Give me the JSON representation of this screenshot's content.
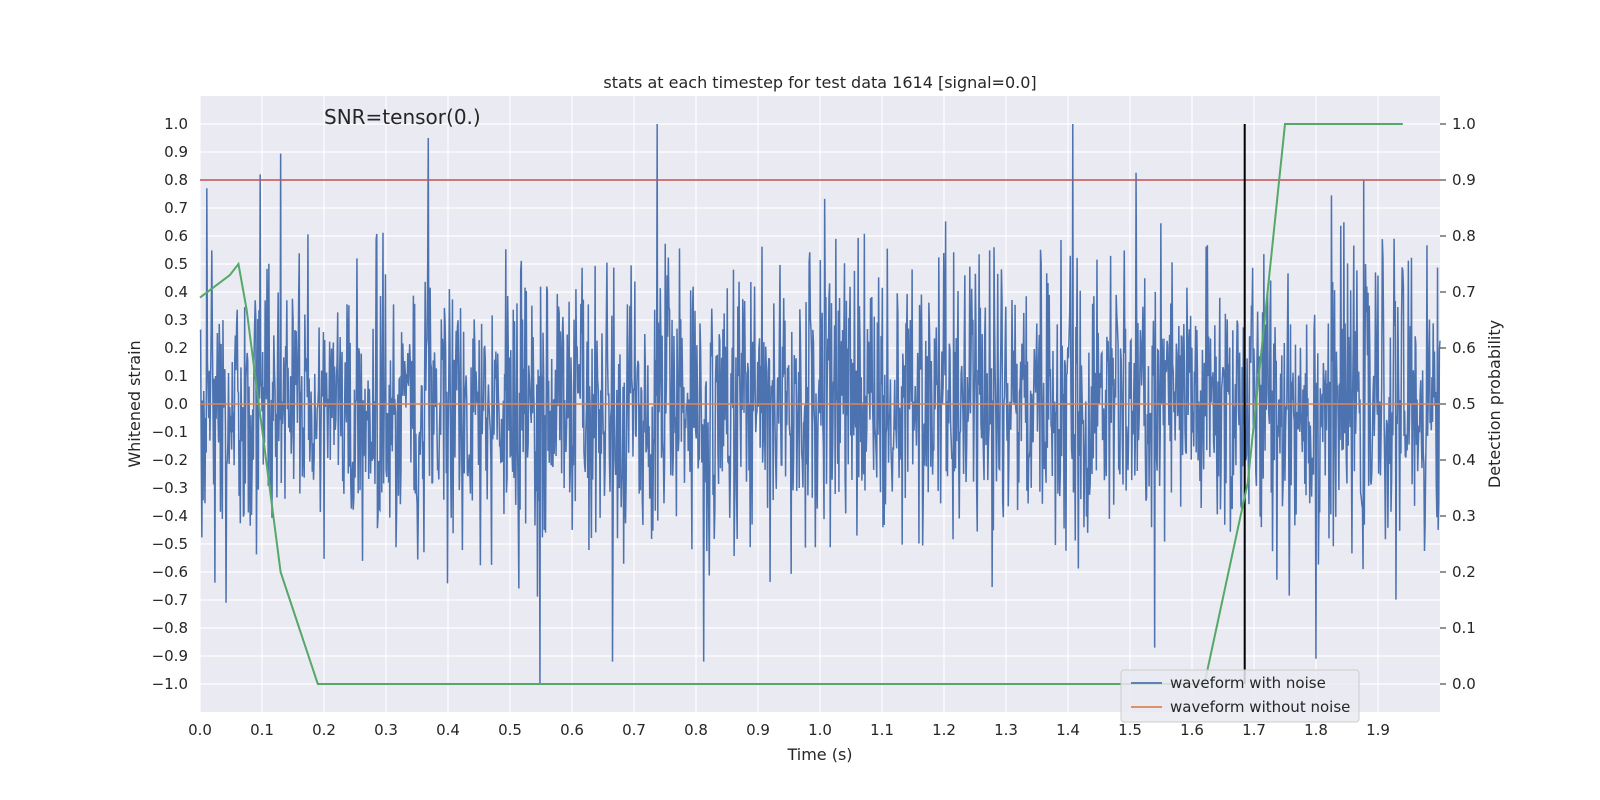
{
  "chart_data": {
    "type": "line",
    "title": "stats at each timestep for test data 1614 [signal=0.0]",
    "xlabel": "Time (s)",
    "ylabel": "Whitened strain",
    "y2label": "Detection probability",
    "annotation": "SNR=tensor(0.)",
    "xlim": [
      0.0,
      2.0
    ],
    "ylim": [
      -1.1,
      1.1
    ],
    "y2lim": [
      -0.05,
      1.05
    ],
    "x_ticks": [
      0.0,
      0.1,
      0.2,
      0.3,
      0.4,
      0.5,
      0.6,
      0.7,
      0.8,
      0.9,
      1.0,
      1.1,
      1.2,
      1.3,
      1.4,
      1.5,
      1.6,
      1.7,
      1.8,
      1.9
    ],
    "x_tick_labels": [
      "0.0",
      "0.1",
      "0.2",
      "0.3",
      "0.4",
      "0.5",
      "0.6",
      "0.7",
      "0.8",
      "0.9",
      "1.0",
      "1.1",
      "1.2",
      "1.3",
      "1.4",
      "1.5",
      "1.6",
      "1.7",
      "1.8",
      "1.9"
    ],
    "y_ticks": [
      -1.0,
      -0.9,
      -0.8,
      -0.7,
      -0.6,
      -0.5,
      -0.4,
      -0.3,
      -0.2,
      -0.1,
      0.0,
      0.1,
      0.2,
      0.3,
      0.4,
      0.5,
      0.6,
      0.7,
      0.8,
      0.9,
      1.0
    ],
    "y_tick_labels": [
      "−1.0",
      "−0.9",
      "−0.8",
      "−0.7",
      "−0.6",
      "−0.5",
      "−0.4",
      "−0.3",
      "−0.2",
      "−0.1",
      "0.0",
      "0.1",
      "0.2",
      "0.3",
      "0.4",
      "0.5",
      "0.6",
      "0.7",
      "0.8",
      "0.9",
      "1.0"
    ],
    "y2_ticks": [
      0.0,
      0.1,
      0.2,
      0.3,
      0.4,
      0.5,
      0.6,
      0.7,
      0.8,
      0.9,
      1.0
    ],
    "y2_tick_labels": [
      "0.0",
      "0.1",
      "0.2",
      "0.3",
      "0.4",
      "0.5",
      "0.6",
      "0.7",
      "0.8",
      "0.9",
      "1.0"
    ],
    "series": [
      {
        "name": "waveform with noise",
        "color": "#4c72b0",
        "axis": "left",
        "samples": 2000,
        "x_range": [
          0.0,
          2.0
        ],
        "typical_amplitude": 0.25,
        "noted_peaks": [
          [
            0.097,
            0.82
          ],
          [
            0.368,
            0.95
          ],
          [
            0.737,
            1.0
          ],
          [
            1.408,
            1.0
          ],
          [
            0.548,
            -1.0
          ],
          [
            0.665,
            -0.92
          ],
          [
            0.812,
            -0.92
          ],
          [
            0.042,
            -0.71
          ],
          [
            1.8,
            -0.91
          ],
          [
            1.54,
            -0.87
          ]
        ]
      },
      {
        "name": "waveform without noise",
        "color": "#dd8452",
        "axis": "left",
        "x": [
          0.0,
          2.0
        ],
        "y": [
          0.0,
          0.0
        ]
      },
      {
        "name": "detection probability",
        "color": "#55a868",
        "axis": "right",
        "x": [
          0.0,
          0.048,
          0.062,
          0.075,
          0.13,
          0.16,
          0.19,
          0.25,
          1.62,
          1.69,
          1.75,
          1.94
        ],
        "y": [
          0.69,
          0.73,
          0.75,
          0.67,
          0.2,
          0.1,
          0.0,
          0.0,
          0.0,
          0.36,
          1.0,
          1.0
        ]
      }
    ],
    "threshold": {
      "y": 0.8,
      "axis": "left",
      "color": "#c44e52"
    },
    "marker_line": {
      "x": 1.685,
      "y_range": [
        -1.0,
        1.0
      ],
      "color": "#000000"
    },
    "legend": {
      "placement": "bottom-right",
      "entries": [
        {
          "label": "waveform with noise",
          "color": "#4c72b0"
        },
        {
          "label": "waveform without noise",
          "color": "#dd8452"
        }
      ]
    },
    "colors": {
      "plot_background": "#eaeaf2",
      "grid": "#ffffff"
    }
  }
}
